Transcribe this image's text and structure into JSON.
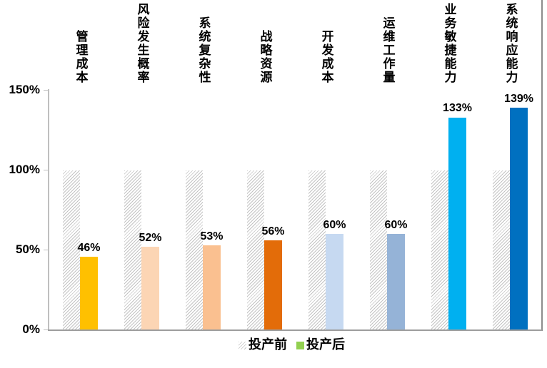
{
  "chart_data": {
    "type": "bar",
    "title": "",
    "xlabel": "",
    "ylabel": "",
    "categories": [
      "管理成本",
      "风险发生概率",
      "系统复杂性",
      "战略资源",
      "开发成本",
      "运维工作量",
      "业务敏捷能力",
      "系统响应能力"
    ],
    "series": [
      {
        "name": "投产前",
        "values": [
          100,
          100,
          100,
          100,
          100,
          100,
          100,
          100
        ],
        "style": "hatched-gray"
      },
      {
        "name": "投产后",
        "values": [
          46,
          52,
          53,
          56,
          60,
          60,
          133,
          139
        ],
        "colors": [
          "#FFC000",
          "#FCD5B4",
          "#FAC090",
          "#E36C09",
          "#C6D9F1",
          "#95B3D7",
          "#00B0F0",
          "#0070C0"
        ]
      }
    ],
    "data_labels": [
      "46%",
      "52%",
      "53%",
      "56%",
      "60%",
      "60%",
      "133%",
      "139%"
    ],
    "y_ticks": [
      "0%",
      "50%",
      "100%",
      "150%"
    ],
    "ylim": [
      0,
      150
    ],
    "grid": false,
    "legend_position": "bottom",
    "legend": [
      {
        "label": "投产前",
        "swatch": "hatched-gray"
      },
      {
        "label": "投产后",
        "swatch": "#92D050"
      }
    ],
    "colors": {
      "axis_line": "#BFBFBF",
      "baseline": "#9D9D9D",
      "hatch_line": "#C3C3C3",
      "text": "#000000"
    }
  }
}
